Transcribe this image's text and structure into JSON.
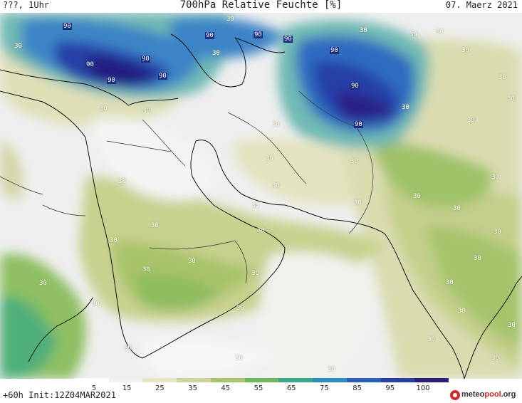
{
  "header": {
    "left": "???, 1Uhr",
    "title": "700hPa Relative Feuchte [%]",
    "date": "07. Maerz 2021"
  },
  "footer": {
    "init": "+60h Init:12Z04MAR2021",
    "logo_prefix": "meteo",
    "logo_brand": "pool",
    "logo_suffix": ".org",
    "logo_color": "#d8262a"
  },
  "colorbar": {
    "ticks": [
      "5",
      "15",
      "25",
      "35",
      "45",
      "55",
      "65",
      "75",
      "85",
      "95",
      "100"
    ],
    "colors": [
      "#ffffff",
      "#f2f2f2",
      "#e6e6c6",
      "#cfd49a",
      "#a9c46a",
      "#6db75c",
      "#3aa88a",
      "#2c8fbf",
      "#2a62b8",
      "#2a3fa4",
      "#2a1f7a"
    ]
  },
  "map": {
    "contour_labels_30": [
      "30",
      "30",
      "30",
      "30",
      "30",
      "30",
      "30",
      "30",
      "30",
      "30",
      "30",
      "30",
      "30",
      "30",
      "30",
      "30",
      "30",
      "30",
      "30",
      "30",
      "30",
      "30",
      "30",
      "30",
      "30",
      "30",
      "30",
      "30",
      "30",
      "30",
      "30",
      "30",
      "30",
      "30",
      "30",
      "30",
      "30",
      "30",
      "30",
      "30",
      "30",
      "30"
    ],
    "contour_labels_90": [
      "90",
      "90",
      "90",
      "90",
      "90",
      "90",
      "90",
      "90",
      "90",
      "90",
      "90"
    ]
  }
}
